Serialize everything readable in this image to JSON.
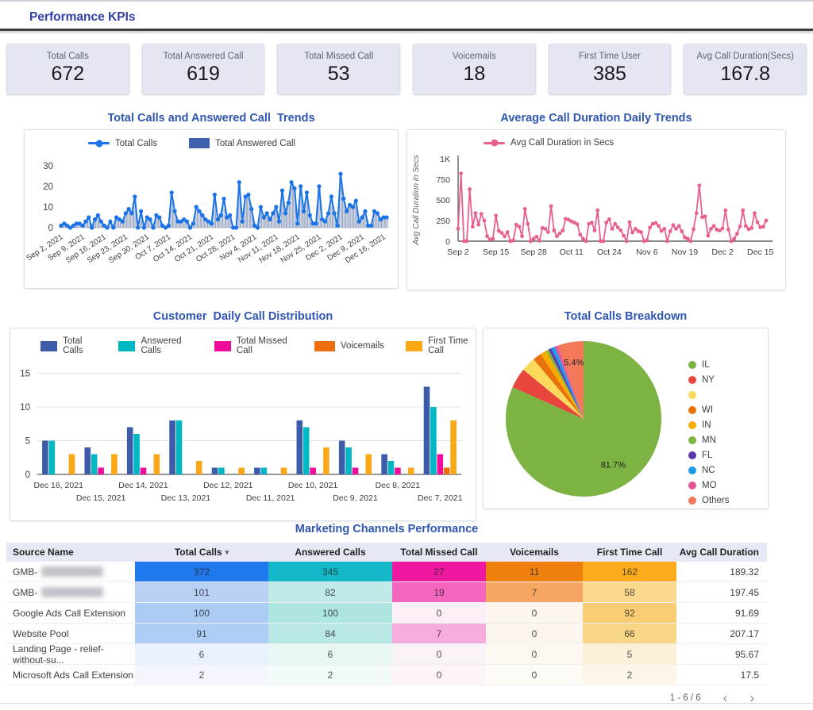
{
  "header": {
    "title": "Performance KPIs"
  },
  "kpis": [
    {
      "label": "Total Calls",
      "value": "672"
    },
    {
      "label": "Total Answered Call",
      "value": "619"
    },
    {
      "label": "Total Missed Call",
      "value": "53"
    },
    {
      "label": "Voicemails",
      "value": "18"
    },
    {
      "label": "First Time User",
      "value": "385"
    },
    {
      "label": "Avg Call Duration(Secs)",
      "value": "167.8"
    }
  ],
  "chart_data": [
    {
      "id": "calls_trend",
      "type": "line",
      "title": "Total Calls and Answered Call  Trends",
      "x_start": "Sep 2, 2021",
      "x_end": "Dec 17, 2021",
      "x_tick_every": 7,
      "x_tick_labels": [
        "Sep 2, 2021",
        "Sep 9, 2021",
        "Sep 16, 2021",
        "Sep 23, 2021",
        "Sep 30, 2021",
        "Oct 7, 2021",
        "Oct 14, 2021",
        "Oct 21, 2021",
        "Oct 28, 2021",
        "Nov 4, 2021",
        "Nov 11, 2021",
        "Nov 18, 2021",
        "Nov 25, 2021",
        "Dec 2, 2021",
        "Dec 9, 2021",
        "Dec 16, 2021"
      ],
      "ylim": [
        0,
        30
      ],
      "y_ticks": [
        0,
        10,
        20,
        30
      ],
      "legend": [
        {
          "label": "Total Calls",
          "color": "#1A73E8",
          "marker": "line"
        },
        {
          "label": "Total Answered Call",
          "color": "#3E62AE",
          "marker": "square"
        }
      ],
      "series": [
        {
          "name": "Total Calls",
          "type": "line",
          "color": "#1A73E8",
          "values": [
            1,
            2,
            1,
            0,
            1,
            2,
            2,
            1,
            3,
            5,
            0,
            4,
            6,
            3,
            1,
            0,
            3,
            0,
            5,
            4,
            3,
            7,
            9,
            7,
            15,
            0,
            8,
            0,
            5,
            4,
            0,
            6,
            5,
            1,
            0,
            1,
            17,
            8,
            3,
            3,
            4,
            3,
            0,
            2,
            10,
            8,
            6,
            4,
            3,
            2,
            16,
            4,
            6,
            14,
            5,
            6,
            0,
            0,
            22,
            3,
            15,
            16,
            9,
            1,
            0,
            10,
            5,
            7,
            4,
            7,
            10,
            3,
            18,
            7,
            12,
            22,
            19,
            2,
            20,
            8,
            17,
            6,
            2,
            2,
            20,
            4,
            3,
            7,
            15,
            7,
            1,
            26,
            14,
            8,
            11,
            10,
            13,
            3,
            5,
            8,
            1,
            1,
            8,
            7,
            4,
            5,
            5
          ]
        },
        {
          "name": "Total Answered Call",
          "type": "bar",
          "color": "#CBD5EA",
          "values": [
            1,
            2,
            1,
            0,
            1,
            2,
            2,
            1,
            3,
            4,
            0,
            4,
            5,
            3,
            1,
            0,
            3,
            0,
            4,
            4,
            3,
            6,
            8,
            6,
            14,
            0,
            7,
            0,
            4,
            4,
            0,
            5,
            4,
            1,
            0,
            1,
            16,
            7,
            3,
            3,
            4,
            3,
            0,
            2,
            9,
            7,
            5,
            4,
            3,
            2,
            15,
            4,
            5,
            13,
            4,
            5,
            0,
            0,
            21,
            3,
            14,
            15,
            8,
            1,
            0,
            9,
            4,
            6,
            4,
            6,
            9,
            3,
            17,
            6,
            11,
            20,
            18,
            2,
            19,
            7,
            16,
            5,
            2,
            2,
            19,
            4,
            3,
            6,
            14,
            6,
            1,
            24,
            13,
            7,
            10,
            9,
            10,
            2,
            4,
            7,
            1,
            1,
            8,
            6,
            3,
            5,
            5
          ]
        }
      ]
    },
    {
      "id": "duration_trend",
      "type": "line",
      "title": "Average Call Duration Daily Trends",
      "ylabel": "Avg Call Duration in Secs",
      "x_tick_every": 13,
      "x_tick_labels": [
        "Sep 2",
        "Sep 15",
        "Sep 28",
        "Oct 11",
        "Oct 24",
        "Nov 6",
        "Nov 19",
        "Dec 2",
        "Dec 15"
      ],
      "ylim": [
        0,
        1000
      ],
      "y_ticks": [
        0,
        250,
        500,
        750,
        1000
      ],
      "y_tick_labels": [
        "0",
        "250",
        "500",
        "750",
        "1K"
      ],
      "legend": [
        {
          "label": "Avg Call Duration in Secs",
          "color": "#E8618C",
          "marker": "line"
        }
      ],
      "series": [
        {
          "name": "Avg Call Duration in Secs",
          "type": "line",
          "color": "#E8618C",
          "values": [
            150,
            820,
            0,
            0,
            630,
            175,
            340,
            200,
            330,
            250,
            60,
            20,
            30,
            310,
            125,
            100,
            60,
            110,
            0,
            10,
            200,
            175,
            60,
            390,
            210,
            0,
            30,
            55,
            5,
            160,
            150,
            110,
            425,
            130,
            60,
            95,
            130,
            270,
            260,
            240,
            225,
            205,
            80,
            30,
            0,
            210,
            225,
            130,
            375,
            0,
            0,
            225,
            265,
            150,
            210,
            165,
            130,
            65,
            0,
            230,
            105,
            150,
            120,
            110,
            0,
            10,
            165,
            210,
            220,
            185,
            125,
            150,
            0,
            120,
            195,
            150,
            185,
            120,
            45,
            30,
            0,
            145,
            340,
            675,
            290,
            300,
            65,
            150,
            185,
            140,
            130,
            155,
            375,
            140,
            0,
            30,
            90,
            180,
            375,
            185,
            145,
            160,
            340,
            230,
            170,
            175,
            250
          ]
        }
      ]
    },
    {
      "id": "daily_distribution",
      "type": "bar",
      "title": "Customer  Daily Call Distribution",
      "ylim": [
        0,
        15
      ],
      "y_ticks": [
        0,
        5,
        10,
        15
      ],
      "categories": [
        "Dec 16, 2021",
        "Dec 15, 2021",
        "Dec 14, 2021",
        "Dec 13, 2021",
        "Dec 12, 2021",
        "Dec 11, 2021",
        "Dec 10, 2021",
        "Dec 9, 2021",
        "Dec 8, 2021",
        "Dec 7, 2021"
      ],
      "series": [
        {
          "name": "Total Calls",
          "color": "#3C5BA9",
          "values": [
            5,
            4,
            7,
            8,
            1,
            1,
            8,
            5,
            3,
            13
          ]
        },
        {
          "name": "Answered Calls",
          "color": "#00B8C4",
          "values": [
            5,
            3,
            6,
            8,
            1,
            1,
            7,
            4,
            2,
            10
          ]
        },
        {
          "name": "Total Missed Call",
          "color": "#F00C9B",
          "values": [
            0,
            1,
            1,
            0,
            0,
            0,
            1,
            1,
            1,
            3
          ]
        },
        {
          "name": "Voicemails",
          "color": "#ED6E0E",
          "values": [
            0,
            0,
            0,
            0,
            0,
            0,
            0,
            0,
            0,
            1
          ]
        },
        {
          "name": "First Time Call",
          "color": "#FBA817",
          "values": [
            3,
            3,
            3,
            2,
            1,
            1,
            4,
            3,
            1,
            8
          ]
        }
      ]
    },
    {
      "id": "calls_breakdown",
      "type": "pie",
      "title": "Total Calls Breakdown",
      "labels": [
        "IL",
        "NY",
        "",
        "WI",
        "IN",
        "MN",
        "FL",
        "NC",
        "MO",
        "Others"
      ],
      "values": [
        81.7,
        4.2,
        3.0,
        1.8,
        1.3,
        0.6,
        0.6,
        0.8,
        0.6,
        5.4
      ],
      "colors": [
        "#7CB342",
        "#E8453C",
        "#FBD95C",
        "#E8710A",
        "#F9AB00",
        "#7CB342",
        "#5E35B1",
        "#1E9BE8",
        "#E8549B",
        "#F4795B"
      ],
      "data_labels": [
        "81.7%",
        "",
        "",
        "",
        "",
        "",
        "",
        "",
        "",
        "5.4%"
      ],
      "legend_position": "right"
    }
  ],
  "table": {
    "title": "Marketing Channels Performance",
    "columns": [
      "Source Name",
      "Total Calls",
      "Answered Calls",
      "Total Missed Call",
      "Voicemails",
      "First Time Call",
      "Avg Call Duration"
    ],
    "sort": {
      "column": "Total Calls",
      "direction": "desc"
    },
    "rows": [
      {
        "name": "GMB-",
        "redacted": true,
        "values": [
          "372",
          "345",
          "27",
          "11",
          "162",
          "189.32"
        ],
        "colors": [
          "#1F78EC",
          "#14B8C9",
          "#EE18A1",
          "#F0800D",
          "#FBAB1C"
        ]
      },
      {
        "name": "GMB-",
        "redacted": true,
        "values": [
          "101",
          "82",
          "19",
          "7",
          "58",
          "197.45"
        ],
        "colors": [
          "#B9CFF4",
          "#C0EAE8",
          "#F465BE",
          "#F5A761",
          "#FAD98E"
        ]
      },
      {
        "name": "Google Ads Call Extension",
        "redacted": false,
        "values": [
          "100",
          "100",
          "0",
          "0",
          "92",
          "91.69"
        ],
        "colors": [
          "#ACCCF4",
          "#ADE5E1",
          "#FBEFF8",
          "#FDF6EE",
          "#F9CD74"
        ]
      },
      {
        "name": "Website Pool",
        "redacted": false,
        "values": [
          "91",
          "84",
          "7",
          "0",
          "66",
          "207.17"
        ],
        "colors": [
          "#AFCEF5",
          "#B9E7E4",
          "#F6ACDC",
          "#FDF6EE",
          "#F9D586"
        ]
      },
      {
        "name": "Landing Page - relief-without-su...",
        "redacted": false,
        "values": [
          "6",
          "6",
          "0",
          "0",
          "5",
          "95.67"
        ],
        "colors": [
          "#E9F1FC",
          "#E8F7F6",
          "#FBF1F8",
          "#FDF8F1",
          "#FCEFD8"
        ]
      },
      {
        "name": "Microsoft Ads Call Extension",
        "redacted": false,
        "values": [
          "2",
          "2",
          "0",
          "0",
          "2",
          "17.5"
        ],
        "colors": [
          "#F3F7FD",
          "#F2FBFA",
          "#FCF4FA",
          "#FEFAF5",
          "#FDF6E8"
        ]
      }
    ],
    "pagination": "1 - 6 / 6"
  }
}
